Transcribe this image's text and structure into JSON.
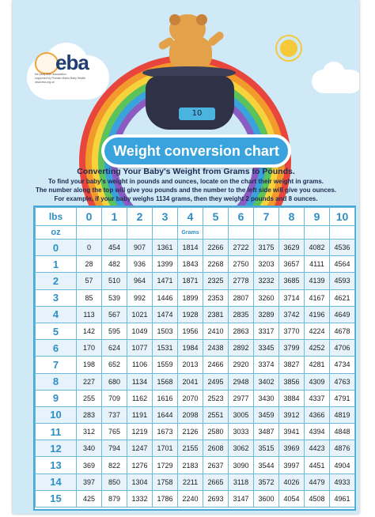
{
  "logo": {
    "brand": "eba",
    "tagline": "the early birth association",
    "subline": "supported by Premier Marks Baby Health",
    "url": "www.eba.org.uk"
  },
  "scale_display": "10",
  "banner_title": "Weight conversion chart",
  "intro": {
    "title": "Converting Your Baby's Weight from Grams to Pounds.",
    "lines": [
      "To find your baby's weight in pounds and ounces, locate on the chart their weight in grams.",
      "The number along the top will give you pounds and the number to the left side will give you ounces.",
      "For example, if your baby weighs 1134 grams, then they weight 2 pounds and 8 ounces."
    ]
  },
  "table": {
    "lbs_label": "lbs",
    "oz_label": "oz",
    "grams_label": "Grams",
    "lbs_headers": [
      "0",
      "1",
      "2",
      "3",
      "4",
      "5",
      "6",
      "7",
      "8",
      "9",
      "10"
    ],
    "rows": [
      {
        "oz": "0",
        "values": [
          "0",
          "454",
          "907",
          "1361",
          "1814",
          "2266",
          "2722",
          "3175",
          "3629",
          "4082",
          "4536"
        ]
      },
      {
        "oz": "1",
        "values": [
          "28",
          "482",
          "936",
          "1399",
          "1843",
          "2268",
          "2750",
          "3203",
          "3657",
          "4111",
          "4564"
        ]
      },
      {
        "oz": "2",
        "values": [
          "57",
          "510",
          "964",
          "1471",
          "1871",
          "2325",
          "2778",
          "3232",
          "3685",
          "4139",
          "4593"
        ]
      },
      {
        "oz": "3",
        "values": [
          "85",
          "539",
          "992",
          "1446",
          "1899",
          "2353",
          "2807",
          "3260",
          "3714",
          "4167",
          "4621"
        ]
      },
      {
        "oz": "4",
        "values": [
          "113",
          "567",
          "1021",
          "1474",
          "1928",
          "2381",
          "2835",
          "3289",
          "3742",
          "4196",
          "4649"
        ]
      },
      {
        "oz": "5",
        "values": [
          "142",
          "595",
          "1049",
          "1503",
          "1956",
          "2410",
          "2863",
          "3317",
          "3770",
          "4224",
          "4678"
        ]
      },
      {
        "oz": "6",
        "values": [
          "170",
          "624",
          "1077",
          "1531",
          "1984",
          "2438",
          "2892",
          "3345",
          "3799",
          "4252",
          "4706"
        ]
      },
      {
        "oz": "7",
        "values": [
          "198",
          "652",
          "1106",
          "1559",
          "2013",
          "2466",
          "2920",
          "3374",
          "3827",
          "4281",
          "4734"
        ]
      },
      {
        "oz": "8",
        "values": [
          "227",
          "680",
          "1134",
          "1568",
          "2041",
          "2495",
          "2948",
          "3402",
          "3856",
          "4309",
          "4763"
        ]
      },
      {
        "oz": "9",
        "values": [
          "255",
          "709",
          "1162",
          "1616",
          "2070",
          "2523",
          "2977",
          "3430",
          "3884",
          "4337",
          "4791"
        ]
      },
      {
        "oz": "10",
        "values": [
          "283",
          "737",
          "1191",
          "1644",
          "2098",
          "2551",
          "3005",
          "3459",
          "3912",
          "4366",
          "4819"
        ]
      },
      {
        "oz": "11",
        "values": [
          "312",
          "765",
          "1219",
          "1673",
          "2126",
          "2580",
          "3033",
          "3487",
          "3941",
          "4394",
          "4848"
        ]
      },
      {
        "oz": "12",
        "values": [
          "340",
          "794",
          "1247",
          "1701",
          "2155",
          "2608",
          "3062",
          "3515",
          "3969",
          "4423",
          "4876"
        ]
      },
      {
        "oz": "13",
        "values": [
          "369",
          "822",
          "1276",
          "1729",
          "2183",
          "2637",
          "3090",
          "3544",
          "3997",
          "4451",
          "4904"
        ]
      },
      {
        "oz": "14",
        "values": [
          "397",
          "850",
          "1304",
          "1758",
          "2211",
          "2665",
          "3118",
          "3572",
          "4026",
          "4479",
          "4933"
        ]
      },
      {
        "oz": "15",
        "values": [
          "425",
          "879",
          "1332",
          "1786",
          "2240",
          "2693",
          "3147",
          "3600",
          "4054",
          "4508",
          "4961"
        ]
      }
    ]
  },
  "colors": {
    "sky": "#cfe9f6",
    "accent_blue": "#3aa3dd",
    "header_blue": "#2f8fc4",
    "row_tint": "#e6f3fb"
  }
}
